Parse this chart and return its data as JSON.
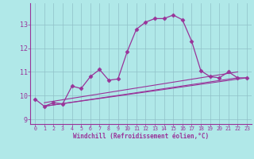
{
  "background_color": "#b0e8e8",
  "grid_color": "#90c0c8",
  "line_color": "#993399",
  "marker": "D",
  "markersize": 2.5,
  "xlabel": "Windchill (Refroidissement éolien,°C)",
  "xlim": [
    -0.5,
    23.5
  ],
  "ylim": [
    8.8,
    13.9
  ],
  "yticks": [
    9,
    10,
    11,
    12,
    13
  ],
  "xticks": [
    0,
    1,
    2,
    3,
    4,
    5,
    6,
    7,
    8,
    9,
    10,
    11,
    12,
    13,
    14,
    15,
    16,
    17,
    18,
    19,
    20,
    21,
    22,
    23
  ],
  "series1_x": [
    0,
    1,
    2,
    3,
    4,
    5,
    6,
    7,
    8,
    9,
    10,
    11,
    12,
    13,
    14,
    15,
    16,
    17,
    18,
    19,
    20,
    21,
    22,
    23
  ],
  "series1_y": [
    9.85,
    9.55,
    9.7,
    9.65,
    10.4,
    10.3,
    10.8,
    11.1,
    10.65,
    10.7,
    11.85,
    12.8,
    13.1,
    13.25,
    13.25,
    13.4,
    13.2,
    12.3,
    11.05,
    10.8,
    10.75,
    11.0,
    10.75,
    10.75
  ],
  "series2_x": [
    1,
    22
  ],
  "series2_y": [
    9.55,
    10.75
  ],
  "series3_x": [
    1,
    22
  ],
  "series3_y": [
    9.7,
    11.0
  ],
  "series4_x": [
    1,
    23
  ],
  "series4_y": [
    9.55,
    10.75
  ]
}
